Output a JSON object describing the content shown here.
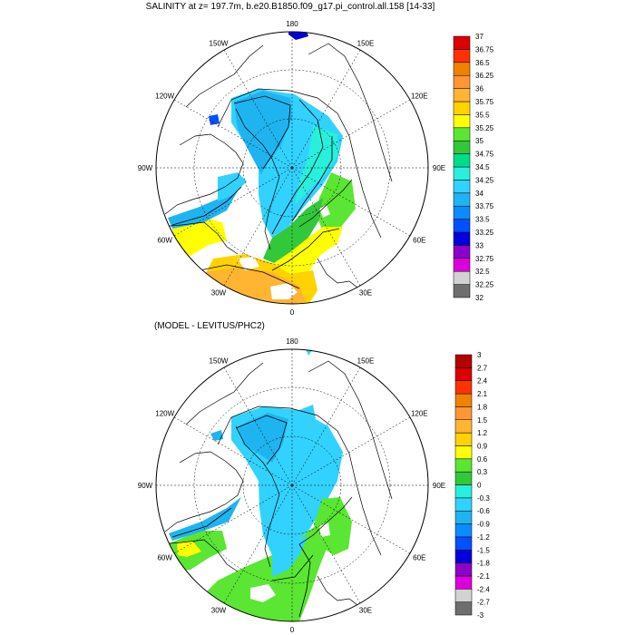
{
  "titles": {
    "top": "SALINITY at z= 197.7m, b.e20.B1850.f09_g17.pi_control.all.158 [14-33]",
    "bottom": "(MODEL - LEVITUS/PHC2)"
  },
  "chart_data": [
    {
      "type": "heatmap",
      "projection": "north polar stereographic",
      "title": "SALINITY at z= 197.7m, b.e20.B1850.f09_g17.pi_control.all.158 [14-33]",
      "longitude_labels": [
        "180",
        "150E",
        "120E",
        "90E",
        "60E",
        "30E",
        "0",
        "30W",
        "60W",
        "90W",
        "120W",
        "150W"
      ],
      "colorbar": {
        "levels": [
          "32",
          "32.25",
          "32.5",
          "32.75",
          "33",
          "33.25",
          "33.5",
          "33.75",
          "34",
          "34.25",
          "34.5",
          "34.75",
          "35",
          "35.25",
          "35.5",
          "35.75",
          "36",
          "36.25",
          "36.5",
          "36.75",
          "37"
        ],
        "colors": [
          "#6e6e6e",
          "#d2d2d2",
          "#dc00dc",
          "#8c00c8",
          "#0000dc",
          "#0050ff",
          "#0a8cff",
          "#1eb4f0",
          "#32d2ff",
          "#28f0dc",
          "#00dc8c",
          "#32c83c",
          "#5ae632",
          "#ffff00",
          "#ffd200",
          "#ffb432",
          "#ff9632",
          "#f08200",
          "#ff3200",
          "#dc0000",
          "#b40000"
        ]
      }
    },
    {
      "type": "heatmap",
      "projection": "north polar stereographic",
      "title": "(MODEL - LEVITUS/PHC2)",
      "longitude_labels": [
        "180",
        "150E",
        "120E",
        "90E",
        "60E",
        "30E",
        "0",
        "30W",
        "60W",
        "90W",
        "120W",
        "150W"
      ],
      "colorbar": {
        "levels": [
          "-3",
          "-2.7",
          "-2.4",
          "-2.1",
          "-1.8",
          "-1.5",
          "-1.2",
          "-0.9",
          "-0.6",
          "-0.3",
          "0",
          "0.3",
          "0.6",
          "0.9",
          "1.2",
          "1.5",
          "1.8",
          "2.1",
          "2.4",
          "2.7",
          "3"
        ],
        "colors": [
          "#6e6e6e",
          "#d2d2d2",
          "#dc00dc",
          "#8c00c8",
          "#0000dc",
          "#0050ff",
          "#0a8cff",
          "#1eb4f0",
          "#32d2ff",
          "#28f0dc",
          "#32c83c",
          "#5ae632",
          "#ffff00",
          "#ffd200",
          "#ffb432",
          "#ff9632",
          "#f08200",
          "#ff3200",
          "#dc0000",
          "#b40000"
        ]
      }
    }
  ]
}
